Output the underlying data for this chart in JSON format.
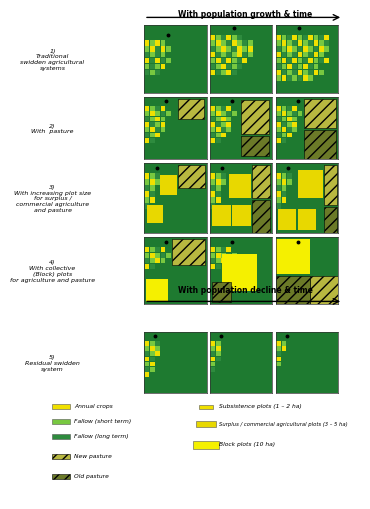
{
  "title_growth": "With population growth & time",
  "title_decline": "With population decline & time",
  "bg_color": "#FFFFFF",
  "forest_color": "#1e7a30",
  "annual_crop_color": "#f0e000",
  "fallow_short_color": "#78c840",
  "fallow_long_color": "#2e8b3e",
  "surplus_plot_color": "#e8d800",
  "block_plot_color": "#f5f000",
  "new_pasture_color": "#b8b840",
  "old_pasture_color": "#6b7a28",
  "row_labels": [
    "1)\nTraditional\nswidden agricultural\nsystems",
    "2)\nWith  pasture",
    "3)\nWith increasing plot size\nfor surplus /\ncommercial agriculture\nand pasture",
    "4)\nWith collective\n(Block) plots\nfor agriculture and pasture",
    "5)\nResidual swidden\nsystem"
  ]
}
